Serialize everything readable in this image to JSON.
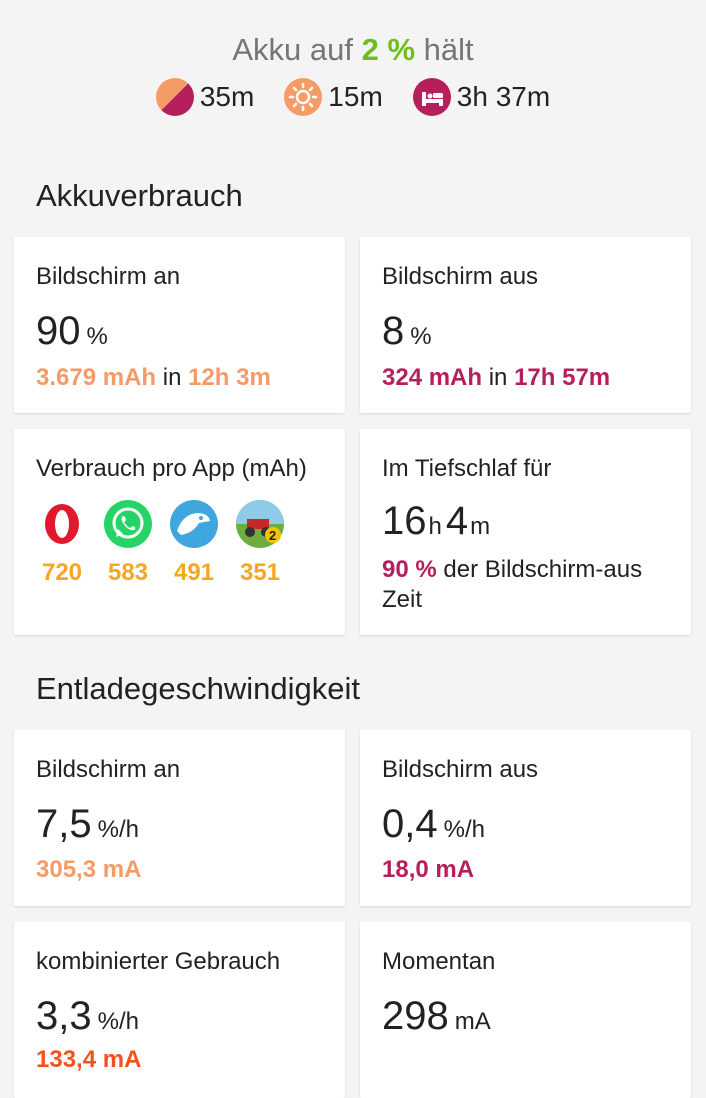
{
  "header": {
    "title_prefix": "Akku auf ",
    "title_pct": "2 %",
    "title_suffix": " hält",
    "estimates": [
      {
        "icon": "mixed-usage-icon",
        "value": "35m"
      },
      {
        "icon": "sun-icon",
        "value": "15m"
      },
      {
        "icon": "bed-icon",
        "value": "3h 37m"
      }
    ]
  },
  "consumption": {
    "title": "Akkuverbrauch",
    "screen_on": {
      "label": "Bildschirm an",
      "value": "90",
      "unit": "%",
      "mah": "3.679 mAh",
      "in": "in",
      "duration": "12h 3m"
    },
    "screen_off": {
      "label": "Bildschirm aus",
      "value": "8",
      "unit": "%",
      "mah": "324 mAh",
      "in": "in",
      "duration": "17h 57m"
    },
    "per_app": {
      "label": "Verbrauch pro App (mAh)",
      "apps": [
        {
          "icon": "opera-icon",
          "value": "720"
        },
        {
          "icon": "whatsapp-icon",
          "value": "583"
        },
        {
          "icon": "kiwi-browser-icon",
          "value": "491"
        },
        {
          "icon": "hill-climb-racing-2-icon",
          "value": "351"
        }
      ]
    },
    "deep_sleep": {
      "label": "Im Tiefschlaf für",
      "hours": "16",
      "h_unit": "h",
      "minutes": "4",
      "m_unit": "m",
      "pct": "90 %",
      "desc_1": " der Bildschirm-aus",
      "desc_2": "Zeit"
    }
  },
  "discharge": {
    "title": "Entladegeschwindigkeit",
    "screen_on": {
      "label": "Bildschirm an",
      "value": "7,5",
      "unit": "%/h",
      "current": "305,3 mA"
    },
    "screen_off": {
      "label": "Bildschirm aus",
      "value": "0,4",
      "unit": "%/h",
      "current": "18,0 mA"
    },
    "combined": {
      "label": "kombinierter Gebrauch",
      "value": "3,3",
      "unit": "%/h",
      "current": "133,4 mA"
    },
    "current_now": {
      "label": "Momentan",
      "value": "298",
      "unit": "mA"
    }
  },
  "colors": {
    "screen_on": "#f59b67",
    "screen_off": "#b51f5d",
    "combined": "#f4511e",
    "highlight": "#6fbe1e",
    "app_value": "#f5a623"
  }
}
